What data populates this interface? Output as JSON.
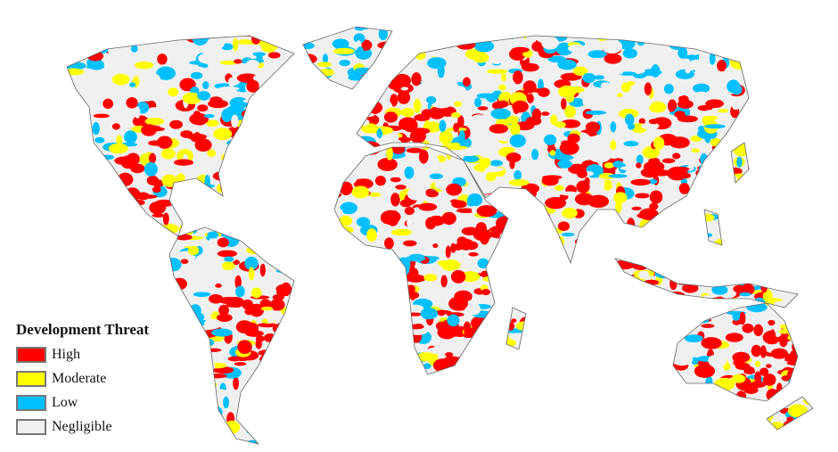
{
  "legend": {
    "title": "Development Threat",
    "items": [
      {
        "label": "High",
        "color": "#ff0000"
      },
      {
        "label": "Moderate",
        "color": "#ffff00"
      },
      {
        "label": "Low",
        "color": "#00c0ff"
      },
      {
        "label": "Negligible",
        "color": "#f0f0f0"
      }
    ]
  },
  "colors": {
    "border": "#666666",
    "background": "#ffffff"
  }
}
